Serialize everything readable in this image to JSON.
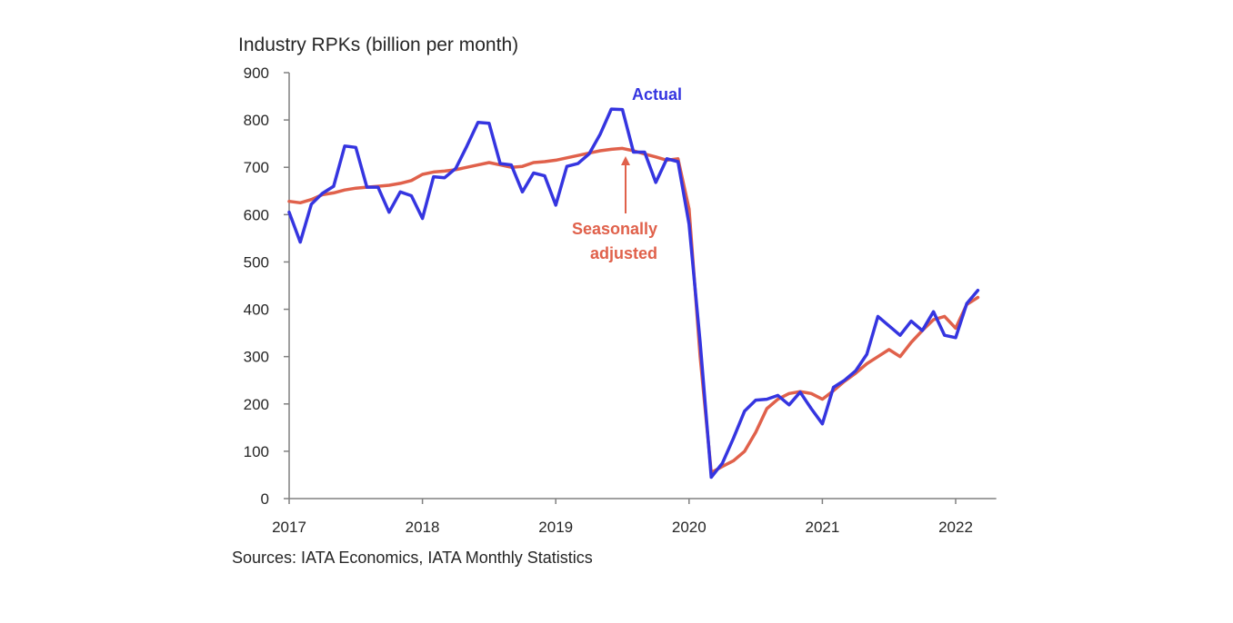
{
  "chart_data": {
    "type": "line",
    "title": "Industry RPKs (billion per month)",
    "source": "Sources: IATA Economics, IATA Monthly Statistics",
    "ylim": [
      0,
      900
    ],
    "yticks": [
      0,
      100,
      200,
      300,
      400,
      500,
      600,
      700,
      800,
      900
    ],
    "xlim": [
      "2017-01",
      "2022-04"
    ],
    "xticks": [
      "2017",
      "2018",
      "2019",
      "2020",
      "2021",
      "2022"
    ],
    "grid": false,
    "x": [
      "2017-01",
      "2017-02",
      "2017-03",
      "2017-04",
      "2017-05",
      "2017-06",
      "2017-07",
      "2017-08",
      "2017-09",
      "2017-10",
      "2017-11",
      "2017-12",
      "2018-01",
      "2018-02",
      "2018-03",
      "2018-04",
      "2018-05",
      "2018-06",
      "2018-07",
      "2018-08",
      "2018-09",
      "2018-10",
      "2018-11",
      "2018-12",
      "2019-01",
      "2019-02",
      "2019-03",
      "2019-04",
      "2019-05",
      "2019-06",
      "2019-07",
      "2019-08",
      "2019-09",
      "2019-10",
      "2019-11",
      "2019-12",
      "2020-01",
      "2020-02",
      "2020-03",
      "2020-04",
      "2020-05",
      "2020-06",
      "2020-07",
      "2020-08",
      "2020-09",
      "2020-10",
      "2020-11",
      "2020-12",
      "2021-01",
      "2021-02",
      "2021-03",
      "2021-04",
      "2021-05",
      "2021-06",
      "2021-07",
      "2021-08",
      "2021-09",
      "2021-10",
      "2021-11",
      "2021-12",
      "2022-01",
      "2022-02",
      "2022-03"
    ],
    "series": [
      {
        "color": "#3535e0",
        "values": [
          605,
          542,
          622,
          645,
          660,
          745,
          742,
          658,
          658,
          605,
          648,
          640,
          592,
          680,
          678,
          698,
          745,
          795,
          793,
          708,
          705,
          648,
          688,
          682,
          620,
          702,
          708,
          728,
          770,
          823,
          822,
          732,
          732,
          668,
          718,
          712,
          580,
          330,
          45,
          75,
          128,
          185,
          208,
          210,
          218,
          198,
          225,
          190,
          158,
          235,
          250,
          270,
          305,
          385,
          365,
          345,
          375,
          355,
          395,
          345,
          340,
          412,
          440
        ]
      },
      {
        "color": "#e0614b",
        "values": [
          628,
          625,
          632,
          642,
          646,
          652,
          656,
          658,
          660,
          662,
          666,
          672,
          685,
          690,
          692,
          695,
          700,
          705,
          710,
          705,
          700,
          702,
          710,
          712,
          715,
          720,
          725,
          730,
          735,
          738,
          740,
          735,
          728,
          722,
          715,
          718,
          612,
          300,
          55,
          68,
          80,
          100,
          140,
          190,
          210,
          222,
          226,
          222,
          210,
          228,
          248,
          265,
          285,
          300,
          315,
          300,
          330,
          355,
          378,
          385,
          360,
          410,
          425
        ]
      }
    ],
    "annotations": {
      "actual": "Actual",
      "seasonally_adjusted_line1": "Seasonally",
      "seasonally_adjusted_line2": "adjusted"
    }
  }
}
